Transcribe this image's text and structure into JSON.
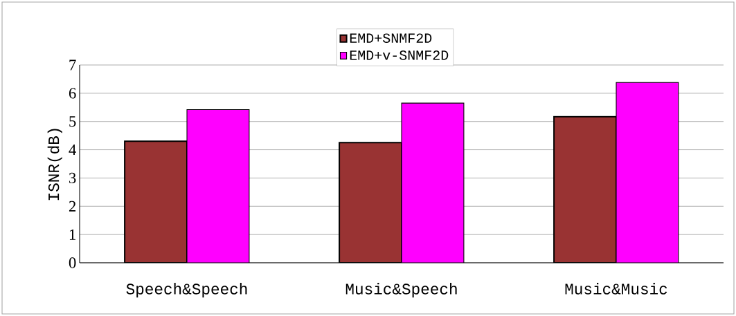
{
  "chart_data": {
    "type": "bar",
    "ylabel": "ISNR(dB)",
    "categories": [
      "Speech&Speech",
      "Music&Speech",
      "Music&Music"
    ],
    "series": [
      {
        "name": "EMD+SNMF2D",
        "color": "#993333",
        "values": [
          4.3,
          4.25,
          5.17
        ]
      },
      {
        "name": "EMD+v-SNMF2D",
        "color": "#ff00ff",
        "values": [
          5.42,
          5.65,
          6.38
        ]
      }
    ],
    "ylim": [
      0,
      7
    ],
    "yticks": [
      0,
      1,
      2,
      3,
      4,
      5,
      6,
      7
    ],
    "grid": "y",
    "legend": "top"
  }
}
